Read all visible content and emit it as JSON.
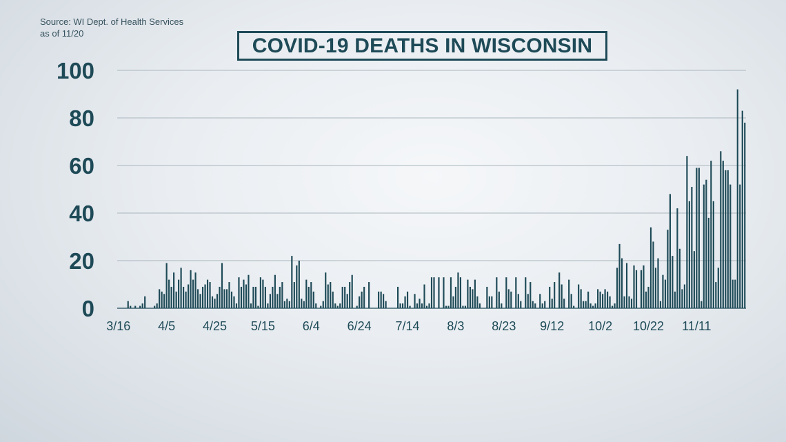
{
  "source": {
    "line1": "Source: WI Dept. of Health Services",
    "line2": "as of 11/20"
  },
  "chart_data": {
    "type": "bar",
    "title": "COVID-19 DEATHS IN WISCONSIN",
    "xlabel": "",
    "ylabel": "",
    "ylim": [
      0,
      100
    ],
    "yticks": [
      "0",
      "20",
      "40",
      "60",
      "80",
      "100"
    ],
    "ytick_values": [
      0,
      20,
      40,
      60,
      80,
      100
    ],
    "grid": true,
    "bar_color": "#1e4a57",
    "gridline_color": "#a9b6be",
    "x_tick_labels": [
      {
        "label": "3/16",
        "index": 0
      },
      {
        "label": "4/5",
        "index": 20
      },
      {
        "label": "4/25",
        "index": 40
      },
      {
        "label": "5/15",
        "index": 60
      },
      {
        "label": "6/4",
        "index": 80
      },
      {
        "label": "6/24",
        "index": 100
      },
      {
        "label": "7/14",
        "index": 120
      },
      {
        "label": "8/3",
        "index": 140
      },
      {
        "label": "8/23",
        "index": 160
      },
      {
        "label": "9/12",
        "index": 180
      },
      {
        "label": "10/2",
        "index": 200
      },
      {
        "label": "10/22",
        "index": 220
      },
      {
        "label": "11/11",
        "index": 240
      }
    ],
    "start_date": "3/16",
    "values": [
      0,
      0,
      0,
      0,
      3,
      1,
      0,
      1,
      0,
      1,
      2,
      5,
      0,
      0,
      0,
      1,
      2,
      8,
      7,
      6,
      19,
      12,
      9,
      15,
      7,
      12,
      17,
      9,
      7,
      10,
      16,
      12,
      15,
      8,
      6,
      9,
      10,
      12,
      11,
      5,
      4,
      6,
      9,
      19,
      8,
      8,
      11,
      7,
      5,
      2,
      13,
      9,
      12,
      10,
      14,
      2,
      9,
      9,
      1,
      13,
      12,
      9,
      2,
      6,
      9,
      14,
      6,
      9,
      11,
      3,
      4,
      3,
      22,
      11,
      18,
      20,
      4,
      3,
      12,
      9,
      11,
      7,
      2,
      0,
      1,
      3,
      15,
      10,
      11,
      7,
      2,
      1,
      2,
      9,
      9,
      6,
      11,
      14,
      0,
      1,
      5,
      7,
      9,
      0,
      11,
      0,
      0,
      0,
      7,
      7,
      6,
      3,
      0,
      0,
      0,
      0,
      9,
      2,
      2,
      5,
      7,
      1,
      0,
      6,
      2,
      4,
      2,
      10,
      1,
      2,
      13,
      13,
      0,
      13,
      0,
      13,
      1,
      1,
      13,
      5,
      9,
      15,
      13,
      1,
      1,
      12,
      9,
      8,
      12,
      5,
      2,
      0,
      0,
      9,
      5,
      5,
      0,
      13,
      7,
      2,
      0,
      13,
      8,
      7,
      0,
      13,
      6,
      3,
      0,
      13,
      6,
      11,
      3,
      2,
      0,
      6,
      2,
      3,
      0,
      9,
      4,
      11,
      0,
      15,
      10,
      4,
      0,
      12,
      6,
      1,
      0,
      10,
      8,
      3,
      3,
      7,
      2,
      1,
      2,
      8,
      7,
      6,
      8,
      7,
      5,
      1,
      2,
      17,
      27,
      21,
      5,
      19,
      5,
      4,
      18,
      16,
      0,
      16,
      18,
      7,
      9,
      34,
      28,
      17,
      21,
      3,
      14,
      12,
      33,
      48,
      22,
      7,
      42,
      25,
      8,
      10,
      64,
      45,
      51,
      24,
      59,
      59,
      3,
      52,
      54,
      38,
      62,
      45,
      11,
      17,
      66,
      62,
      58,
      58,
      52,
      12,
      12,
      92,
      52,
      83,
      78
    ]
  }
}
